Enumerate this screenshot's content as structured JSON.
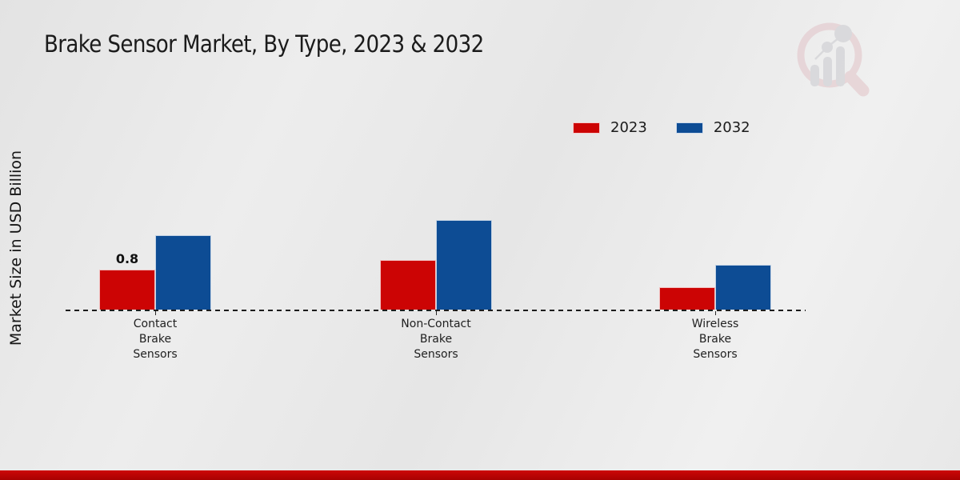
{
  "page": {
    "title": "Brake Sensor Market, By Type, 2023 & 2032"
  },
  "chart_data": {
    "type": "bar",
    "title": "Brake Sensor Market, By Type, 2023 & 2032",
    "xlabel": "",
    "ylabel": "Market Size in USD Billion",
    "categories": [
      "Contact Brake Sensors",
      "Non-Contact Brake Sensors",
      "Wireless Brake Sensors"
    ],
    "category_label_lines": [
      [
        "Contact",
        "Brake",
        "Sensors"
      ],
      [
        "Non-Contact",
        "Brake",
        "Sensors"
      ],
      [
        "Wireless",
        "Brake",
        "Sensors"
      ]
    ],
    "series": [
      {
        "name": "2023",
        "color": "#cc0404",
        "values": [
          0.8,
          1.0,
          0.45
        ],
        "data_labels": [
          "0.8",
          "",
          ""
        ]
      },
      {
        "name": "2032",
        "color": "#0d4c94",
        "values": [
          1.5,
          1.8,
          0.9
        ],
        "data_labels": [
          "",
          "",
          ""
        ]
      }
    ],
    "baseline_value": 0,
    "baseline_style": "dashed",
    "gridlines": false,
    "legend_position": "top-right",
    "annotations": [
      "0.8"
    ]
  },
  "branding": {
    "logo_name": "market-research-magnifier-bar-chart-logo",
    "ring_color": "#e2c3c7",
    "glyph_color": "#c9c9cf"
  },
  "footer": {
    "accent_color": "#b80404"
  }
}
